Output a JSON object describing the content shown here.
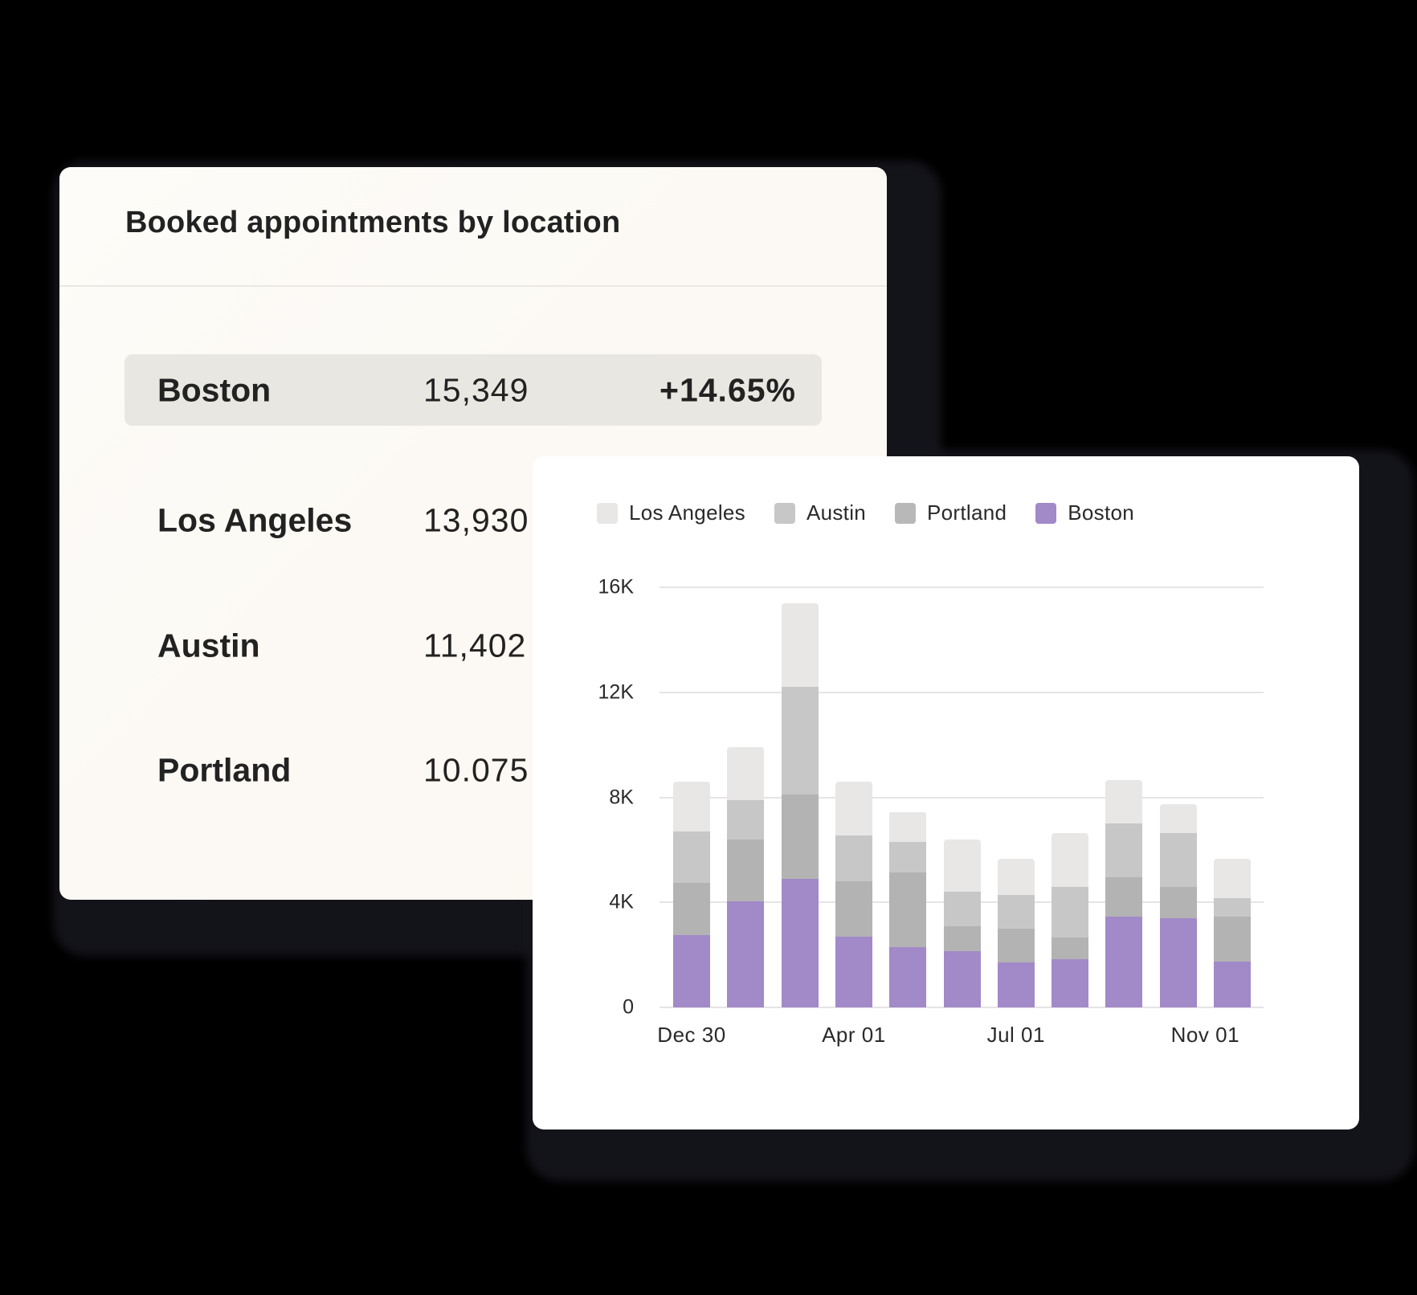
{
  "table_card": {
    "title": "Booked appointments by location",
    "rows": [
      {
        "name": "Boston",
        "value": "15,349",
        "change": "+14.65%",
        "highlighted": true
      },
      {
        "name": "Los Angeles",
        "value": "13,930",
        "change": ""
      },
      {
        "name": "Austin",
        "value": "11,402",
        "change": ""
      },
      {
        "name": "Portland",
        "value": "10.075",
        "change": ""
      }
    ]
  },
  "colors": {
    "los_angeles": "#e8e7e6",
    "austin": "#c7c7c7",
    "portland": "#b3b3b3",
    "boston": "#a289c8",
    "highlight_row": "#e9e7e2",
    "card_bg": "#fcf9f4"
  },
  "chart_data": {
    "type": "bar",
    "stacked": true,
    "title": "",
    "xlabel": "",
    "ylabel": "",
    "ylim": [
      0,
      16000
    ],
    "yticks": [
      "0",
      "4K",
      "8K",
      "12K",
      "16K"
    ],
    "xtick_labels": [
      {
        "label": "Dec 30",
        "index": 0
      },
      {
        "label": "Apr 01",
        "index": 3
      },
      {
        "label": "Jul 01",
        "index": 6
      },
      {
        "label": "Nov 01",
        "index": 9.5
      }
    ],
    "grid": true,
    "legend_position": "top-left",
    "legend": [
      "Los Angeles",
      "Austin",
      "Portland",
      "Boston"
    ],
    "categories": [
      "1",
      "2",
      "3",
      "4",
      "5",
      "6",
      "7",
      "8",
      "9",
      "10",
      "11"
    ],
    "series": [
      {
        "name": "Boston",
        "color": "#a289c8",
        "values": [
          2750,
          4050,
          4900,
          2700,
          2300,
          2150,
          1700,
          1850,
          3450,
          3400,
          1750
        ]
      },
      {
        "name": "Portland",
        "color": "#b3b3b3",
        "values": [
          2000,
          2350,
          3200,
          2100,
          2850,
          950,
          1300,
          800,
          1500,
          1200,
          1700
        ]
      },
      {
        "name": "Austin",
        "color": "#c7c7c7",
        "values": [
          1950,
          1500,
          4100,
          1750,
          1150,
          1300,
          1270,
          1950,
          2050,
          2050,
          700
        ]
      },
      {
        "name": "Los Angeles",
        "color": "#e8e7e6",
        "values": [
          1900,
          2000,
          3200,
          2050,
          1150,
          2000,
          1380,
          2050,
          1650,
          1100,
          1500
        ]
      }
    ]
  }
}
